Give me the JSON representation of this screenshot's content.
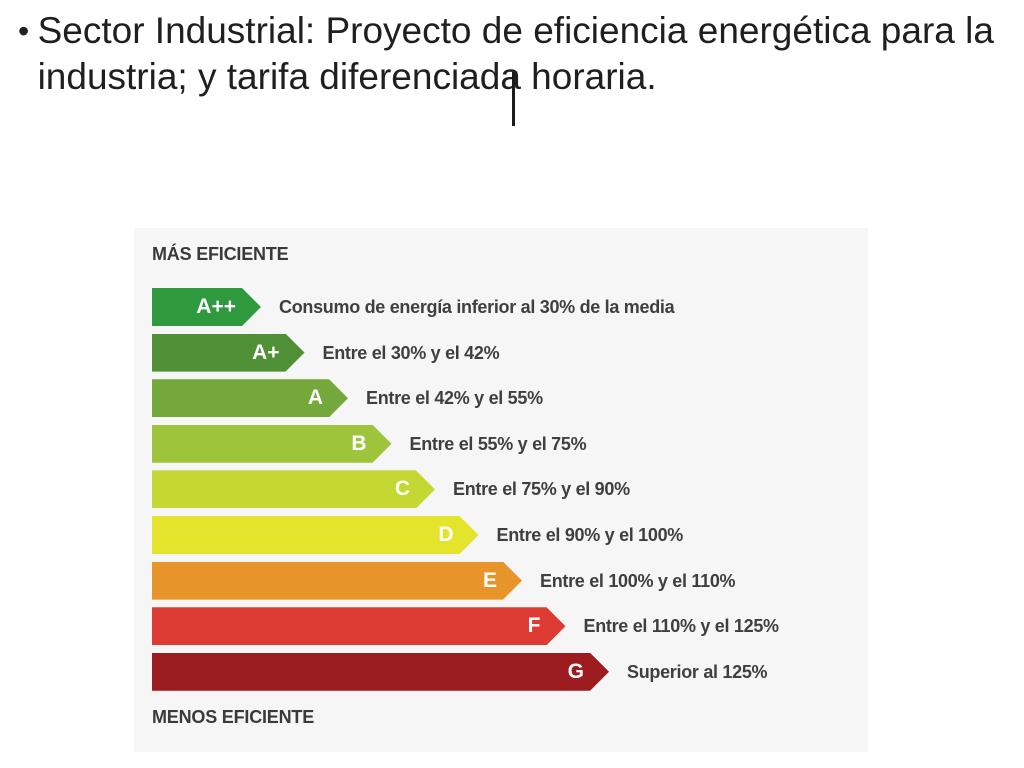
{
  "slide": {
    "bullet_symbol": "•",
    "bullet_text": "Sector Industrial: Proyecto de eficiencia energética para la industria; y tarifa diferenciada horaria."
  },
  "energy_label": {
    "top_label": "MÁS EFICIENTE",
    "bottom_label": "MENOS EFICIENTE",
    "classes": [
      {
        "letter": "A++",
        "description": "Consumo de energía inferior al 30% de la media",
        "color": "#2e9a3d"
      },
      {
        "letter": "A+",
        "description": "Entre el 30% y el 42%",
        "color": "#4f8f35"
      },
      {
        "letter": "A",
        "description": "Entre el 42% y el 55%",
        "color": "#74a83a"
      },
      {
        "letter": "B",
        "description": "Entre el 55% y el 75%",
        "color": "#9dc43a"
      },
      {
        "letter": "C",
        "description": "Entre el 75% y el 90%",
        "color": "#c5d733"
      },
      {
        "letter": "D",
        "description": "Entre el 90% y el 100%",
        "color": "#e5e42c"
      },
      {
        "letter": "E",
        "description": "Entre el 100% y el 110%",
        "color": "#e7952a"
      },
      {
        "letter": "F",
        "description": "Entre el 110% y el 125%",
        "color": "#de3b34"
      },
      {
        "letter": "G",
        "description": "Superior al 125%",
        "color": "#9c1b1f"
      }
    ]
  }
}
